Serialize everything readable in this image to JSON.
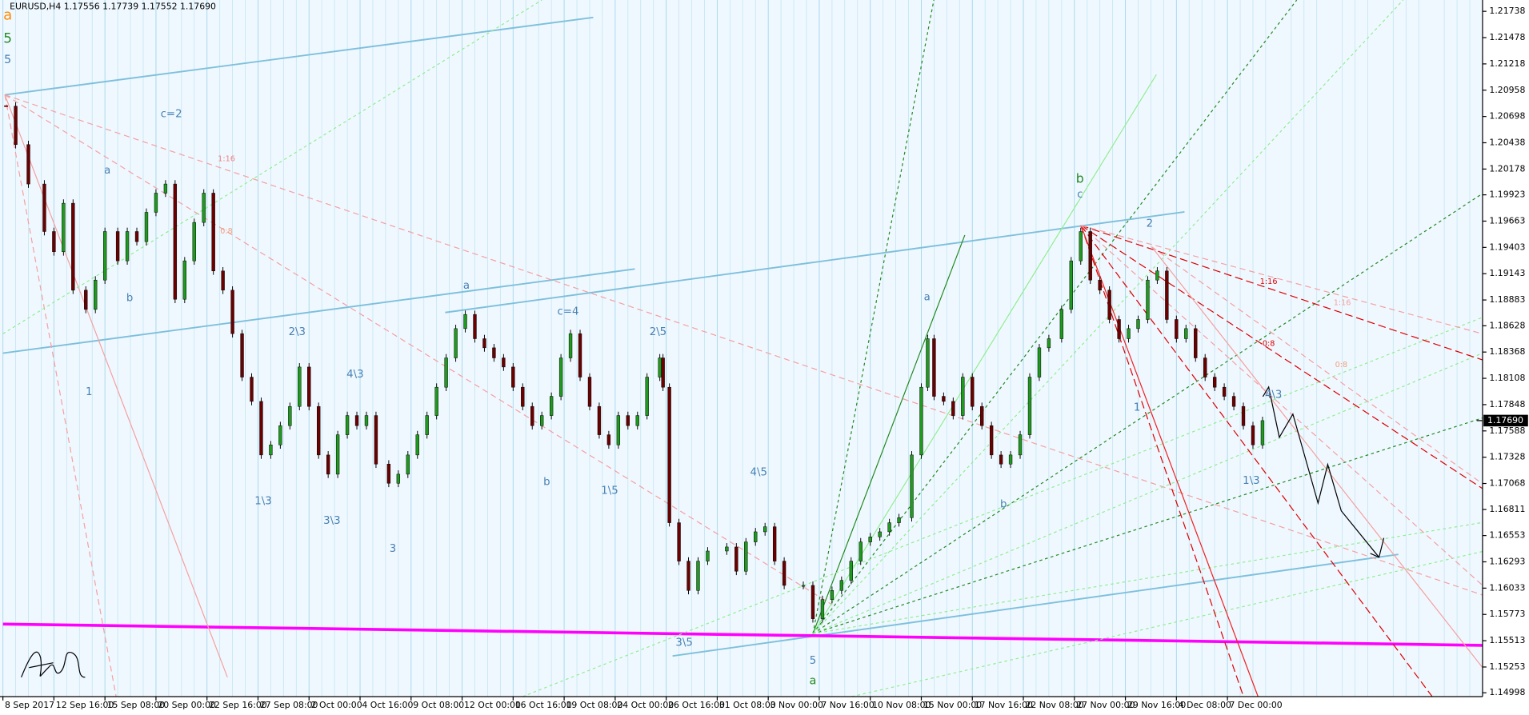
{
  "chart_data": {
    "type": "candlestick",
    "title": "EURUSD,H4  1.17556 1.17739 1.17552 1.17690",
    "x": [
      1,
      4,
      8,
      13,
      16,
      19,
      22,
      26,
      29,
      32,
      36,
      39,
      42,
      45,
      48,
      51,
      54,
      57,
      60,
      63,
      66,
      69,
      72,
      75,
      78,
      81,
      84,
      87,
      90,
      93,
      96,
      99,
      102,
      105,
      108,
      111,
      114,
      117,
      121,
      124,
      127,
      130,
      133,
      136,
      139,
      142,
      145,
      148,
      151,
      154,
      157,
      160,
      163,
      166,
      169,
      172,
      175,
      178,
      181,
      184,
      187,
      190,
      193,
      196,
      199,
      202,
      206,
      207,
      209,
      212,
      215,
      218,
      221,
      227,
      230,
      233,
      236,
      239,
      242,
      245,
      251,
      254,
      257,
      260,
      263,
      266,
      269,
      272,
      275,
      278,
      281,
      285,
      288,
      290,
      292,
      295,
      298,
      301,
      304,
      307,
      310,
      313,
      316,
      319,
      322,
      325,
      328,
      332,
      335,
      338,
      341,
      344,
      347,
      350,
      353,
      356,
      359,
      362,
      365,
      368,
      371,
      374,
      377,
      380,
      383,
      386,
      389,
      392,
      395
    ],
    "values": [
      1.208,
      1.2042,
      1.2003,
      1.1956,
      1.1936,
      1.1984,
      1.1898,
      1.1879,
      1.1908,
      1.1956,
      1.1927,
      1.1956,
      1.1946,
      1.1975,
      1.1994,
      1.2003,
      1.1889,
      1.1927,
      1.1965,
      1.1994,
      1.1917,
      1.1898,
      1.1855,
      1.1812,
      1.1788,
      1.1735,
      1.1745,
      1.1764,
      1.1783,
      1.1822,
      1.1783,
      1.1735,
      1.1716,
      1.1755,
      1.1774,
      1.1764,
      1.1774,
      1.1726,
      1.1707,
      1.1716,
      1.1735,
      1.1755,
      1.1774,
      1.1802,
      1.1831,
      1.186,
      1.1874,
      1.185,
      1.1841,
      1.1831,
      1.1822,
      1.1802,
      1.1783,
      1.1764,
      1.1774,
      1.1793,
      1.1831,
      1.1855,
      1.1812,
      1.1783,
      1.1755,
      1.1745,
      1.1774,
      1.1764,
      1.1774,
      1.1812,
      1.1831,
      1.1802,
      1.1668,
      1.163,
      1.1601,
      1.163,
      1.164,
      1.1644,
      1.162,
      1.1649,
      1.1659,
      1.1664,
      1.163,
      1.1606,
      1.1606,
      1.1573,
      1.1592,
      1.1601,
      1.1611,
      1.163,
      1.1649,
      1.1654,
      1.1659,
      1.1668,
      1.1673,
      1.1735,
      1.1802,
      1.185,
      1.1793,
      1.1788,
      1.1774,
      1.1812,
      1.1783,
      1.1764,
      1.1735,
      1.1726,
      1.1735,
      1.1755,
      1.1812,
      1.1841,
      1.185,
      1.1879,
      1.1927,
      1.1956,
      1.1908,
      1.1898,
      1.1869,
      1.185,
      1.186,
      1.1869,
      1.1908,
      1.1917,
      1.1869,
      1.185,
      1.186,
      1.1831,
      1.1812,
      1.1802,
      1.1793,
      1.1783,
      1.1764,
      1.1745,
      1.1769
    ],
    "up_color": "#1f9a1f",
    "down_color": "#6b0000",
    "xlim": [
      0,
      464
    ],
    "xticks": [
      {
        "value": 0,
        "label": "8 Sep 2017"
      },
      {
        "value": 16,
        "label": "12 Sep 16:00"
      },
      {
        "value": 32,
        "label": "15 Sep 08:00"
      },
      {
        "value": 48,
        "label": "20 Sep 00:00"
      },
      {
        "value": 64,
        "label": "22 Sep 16:00"
      },
      {
        "value": 80,
        "label": "27 Sep 08:00"
      },
      {
        "value": 96,
        "label": "2 Oct 00:00"
      },
      {
        "value": 112,
        "label": "4 Oct 16:00"
      },
      {
        "value": 128,
        "label": "9 Oct 08:00"
      },
      {
        "value": 144,
        "label": "12 Oct 00:00"
      },
      {
        "value": 160,
        "label": "16 Oct 16:00"
      },
      {
        "value": 176,
        "label": "19 Oct 08:00"
      },
      {
        "value": 192,
        "label": "24 Oct 00:00"
      },
      {
        "value": 208,
        "label": "26 Oct 16:00"
      },
      {
        "value": 224,
        "label": "31 Oct 08:00"
      },
      {
        "value": 240,
        "label": "3 Nov 00:00"
      },
      {
        "value": 256,
        "label": "7 Nov 16:00"
      },
      {
        "value": 272,
        "label": "10 Nov 08:00"
      },
      {
        "value": 288,
        "label": "15 Nov 00:00"
      },
      {
        "value": 304,
        "label": "17 Nov 16:00"
      },
      {
        "value": 320,
        "label": "22 Nov 08:00"
      },
      {
        "value": 336,
        "label": "27 Nov 00:00"
      },
      {
        "value": 352,
        "label": "29 Nov 16:00"
      },
      {
        "value": 368,
        "label": "4 Dec 08:00"
      },
      {
        "value": 384,
        "label": "7 Dec 00:00"
      }
    ],
    "ylim": [
      1.1496,
      1.2185
    ],
    "yticks": [
      1.21738,
      1.21478,
      1.21218,
      1.20958,
      1.20698,
      1.20438,
      1.20178,
      1.19923,
      1.19663,
      1.19403,
      1.19143,
      1.18883,
      1.18628,
      1.18368,
      1.18108,
      1.17848,
      1.17588,
      1.17328,
      1.17068,
      1.16811,
      1.16553,
      1.16293,
      1.16033,
      1.15773,
      1.15513,
      1.15253,
      1.14998
    ],
    "current_price": {
      "value": 1.1769,
      "label": "1.17690"
    },
    "grid": true,
    "annotations": [
      {
        "text": "a",
        "color": "#ff8c00"
      },
      {
        "text": "5",
        "color": "#228b22"
      },
      {
        "text": "5",
        "color": "#4682b4"
      },
      {
        "text": "c=2",
        "color": "#4682b4"
      },
      {
        "text": "a",
        "color": "#4682b4"
      },
      {
        "text": "b",
        "color": "#4682b4"
      },
      {
        "text": "1",
        "color": "#4682b4"
      },
      {
        "text": "2\\3",
        "color": "#4682b4"
      },
      {
        "text": "4\\3",
        "color": "#4682b4"
      },
      {
        "text": "1\\3",
        "color": "#4682b4"
      },
      {
        "text": "3\\3",
        "color": "#4682b4"
      },
      {
        "text": "3",
        "color": "#4682b4"
      },
      {
        "text": "a",
        "color": "#4682b4"
      },
      {
        "text": "c=4",
        "color": "#4682b4"
      },
      {
        "text": "b",
        "color": "#4682b4"
      },
      {
        "text": "1\\5",
        "color": "#4682b4"
      },
      {
        "text": "2\\5",
        "color": "#4682b4"
      },
      {
        "text": "3\\5",
        "color": "#4682b4"
      },
      {
        "text": "4\\5",
        "color": "#4682b4"
      },
      {
        "text": "5",
        "color": "#4682b4"
      },
      {
        "text": "a",
        "color": "#228b22"
      },
      {
        "text": "a",
        "color": "#4682b4"
      },
      {
        "text": "b",
        "color": "#4682b4"
      },
      {
        "text": "b",
        "color": "#228b22"
      },
      {
        "text": "c",
        "color": "#4682b4"
      },
      {
        "text": "1",
        "color": "#4682b4"
      },
      {
        "text": "2",
        "color": "#4682b4"
      },
      {
        "text": "1\\3",
        "color": "#4682b4"
      },
      {
        "text": "4\\3",
        "color": "#4682b4"
      },
      {
        "text": "1:16",
        "color": "#f08080"
      },
      {
        "text": "0:8",
        "color": "#f0a080"
      },
      {
        "text": "1:16",
        "color": "#dd0000"
      },
      {
        "text": "1:16",
        "color": "#f0a0a0"
      },
      {
        "text": "0:8",
        "color": "#dd0000"
      },
      {
        "text": "0:8",
        "color": "#f0a080"
      }
    ]
  }
}
